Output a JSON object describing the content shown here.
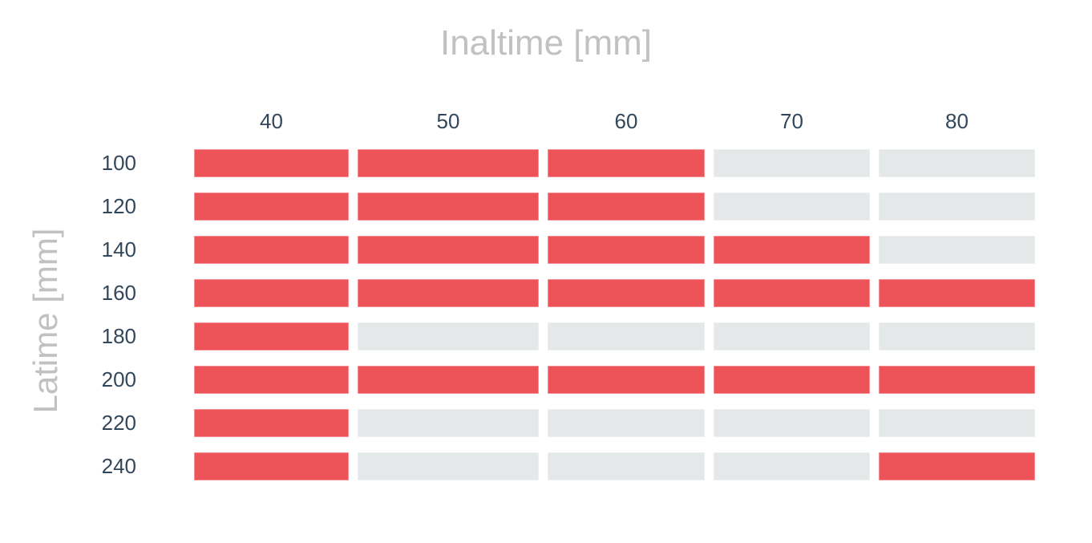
{
  "chart_data": {
    "type": "heatmap",
    "title": "Inaltime [mm]",
    "xlabel": "Inaltime [mm]",
    "ylabel": "Latime [mm]",
    "x_axis_position": "top",
    "legend": "none",
    "grid_lines": "off",
    "x_tick_labels": [
      "40",
      "50",
      "60",
      "70",
      "80"
    ],
    "y_tick_labels": [
      "100",
      "120",
      "140",
      "160",
      "180",
      "200",
      "220",
      "240"
    ],
    "cell_values_note": "1 = red cell, 0 = gray cell",
    "cells": [
      [
        1,
        1,
        1,
        0,
        0
      ],
      [
        1,
        1,
        1,
        0,
        0
      ],
      [
        1,
        1,
        1,
        1,
        0
      ],
      [
        1,
        1,
        1,
        1,
        1
      ],
      [
        1,
        0,
        0,
        0,
        0
      ],
      [
        1,
        1,
        1,
        1,
        1
      ],
      [
        1,
        0,
        0,
        0,
        0
      ],
      [
        1,
        0,
        0,
        0,
        1
      ]
    ],
    "colors": {
      "active": "#EE535A",
      "inactive": "#E4E8E9",
      "axis_title": "#BFC1C3",
      "tick_label": "#33475B"
    }
  }
}
